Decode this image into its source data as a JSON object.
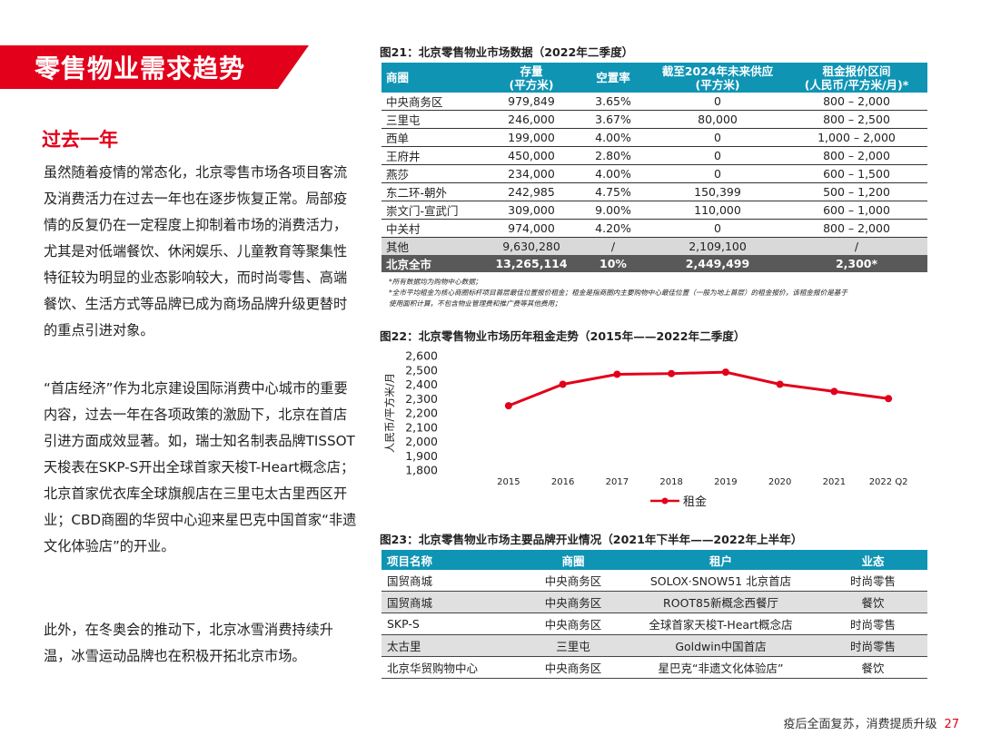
{
  "section_title": "零售物业需求趋势",
  "subheading": "过去一年",
  "paragraphs": [
    "虽然随着疫情的常态化，北京零售市场各项目客流及消费活力在过去一年也在逐步恢复正常。局部疫情的反复仍在一定程度上抑制着市场的消费活力，尤其是对低端餐饮、休闲娱乐、儿童教育等聚集性特征较为明显的业态影响较大，而时尚零售、高端餐饮、生活方式等品牌已成为商场品牌升级更替时的重点引进对象。",
    "“首店经济”作为北京建设国际消费中心城市的重要内容，过去一年在各项政策的激励下，北京在首店引进方面成效显著。如，瑞士知名制表品牌TISSOT天梭表在SKP-S开出全球首家天梭T-Heart概念店；北京首家优衣库全球旗舰店在三里屯太古里西区开业；CBD商圈的华贸中心迎来星巴克中国首家“非遗文化体验店”的开业。",
    "此外，在冬奥会的推动下，北京冰雪消费持续升温，冰雪运动品牌也在积极开拓北京市场。"
  ],
  "fig21": {
    "title": "图21：北京零售物业市场数据（2022年二季度）",
    "headers": {
      "district": "商圈",
      "stock_1": "存量",
      "stock_2": "(平方米)",
      "vacancy": "空置率",
      "supply_1": "截至2024年未来供应",
      "supply_2": "(平方米)",
      "rent_1": "租金报价区间",
      "rent_2": "(人民币/平方米/月)*"
    },
    "rows": [
      [
        "中央商务区",
        "979,849",
        "3.65%",
        "0",
        "800 – 2,000"
      ],
      [
        "三里屯",
        "246,000",
        "3.67%",
        "80,000",
        "800 – 2,500"
      ],
      [
        "西单",
        "199,000",
        "4.00%",
        "0",
        "1,000 – 2,000"
      ],
      [
        "王府井",
        "450,000",
        "2.80%",
        "0",
        "800 – 2,000"
      ],
      [
        "燕莎",
        "234,000",
        "4.00%",
        "0",
        "600 – 1,500"
      ],
      [
        "东二环-朝外",
        "242,985",
        "4.75%",
        "150,399",
        "500 – 1,200"
      ],
      [
        "崇文门-宣武门",
        "309,000",
        "9.00%",
        "110,000",
        "600 – 1,000"
      ],
      [
        "中关村",
        "974,000",
        "4.20%",
        "0",
        "800 – 2,000"
      ]
    ],
    "other_row": [
      "其他",
      "9,630,280",
      "/",
      "2,109,100",
      "/"
    ],
    "total_row": [
      "北京全市",
      "13,265,114",
      "10%",
      "2,449,499",
      "2,300*"
    ],
    "notes": [
      "*所有数据均为购物中心数据；",
      "*全市平均租金为核心商圈标杆项目首层最佳位置报价租金；租金是指商圈内主要购物中心最佳位置（一般为地上首层）的租金报价，该租金报价是基于",
      "使用面积计算，不包含物业管理费和推广费等其他费用；"
    ]
  },
  "fig22_title": "图22：北京零售物业市场历年租金走势（2015年——2022年二季度）",
  "chart_data": {
    "type": "line",
    "title": "图22：北京零售物业市场历年租金走势（2015年——2022年二季度）",
    "categories": [
      "2015",
      "2016",
      "2017",
      "2018",
      "2019",
      "2020",
      "2021",
      "2022 Q2"
    ],
    "series": [
      {
        "name": "租金",
        "values": [
          2250,
          2400,
          2470,
          2475,
          2485,
          2400,
          2350,
          2300
        ]
      }
    ],
    "ylabel": "人民币/平方米/月",
    "xlabel": "",
    "ylim": [
      1800,
      2600
    ],
    "yticks": [
      "1,800",
      "1,900",
      "2,000",
      "2,100",
      "2,200",
      "2,300",
      "2,400",
      "2,500",
      "2,600"
    ],
    "legend": "bottom-center",
    "color": "#e2001a"
  },
  "fig23": {
    "title": "图23：北京零售物业市场主要品牌开业情况（2021年下半年——2022年上半年）",
    "headers": [
      "项目名称",
      "商圈",
      "租户",
      "业态"
    ],
    "rows": [
      [
        "国贸商城",
        "中央商务区",
        "SOLOX·SNOW51 北京首店",
        "时尚零售"
      ],
      [
        "国贸商城",
        "中央商务区",
        "ROOT85新概念西餐厅",
        "餐饮"
      ],
      [
        "SKP-S",
        "中央商务区",
        "全球首家天梭T-Heart概念店",
        "时尚零售"
      ],
      [
        "太古里",
        "三里屯",
        "Goldwin中国首店",
        "时尚零售"
      ],
      [
        "北京华贸购物中心",
        "中央商务区",
        "星巴克“非遗文化体验店”",
        "餐饮"
      ]
    ]
  },
  "footer": {
    "text": "疫后全面复苏，消费提质升级",
    "page": "27"
  },
  "colors": {
    "accent": "#e2001a",
    "table_header": "#0f94b4"
  }
}
